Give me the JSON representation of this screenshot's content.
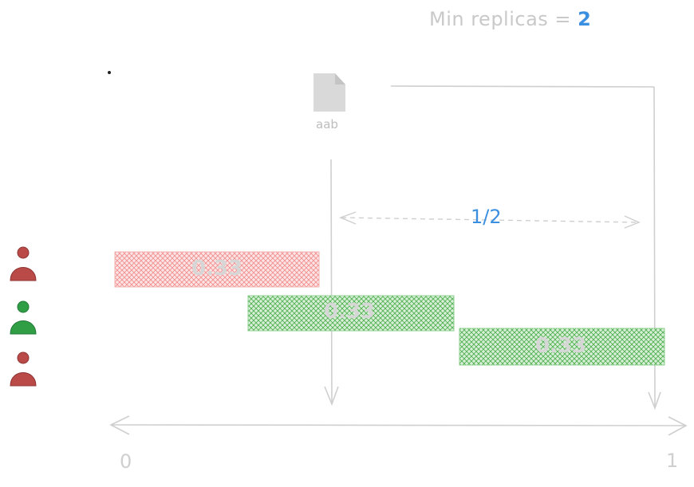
{
  "title": {
    "prefix": "Min replicas = ",
    "value": "2"
  },
  "file": {
    "name": "aab",
    "icon": "file-icon"
  },
  "offset_label": "1/2",
  "axis": {
    "start": "0",
    "end": "1"
  },
  "nodes": [
    {
      "icon": "person-icon",
      "status": "excluded",
      "color": "#b94a48",
      "share": "0.33"
    },
    {
      "icon": "person-icon",
      "status": "selected",
      "color": "#2f9e44",
      "share": "0.33"
    },
    {
      "icon": "person-icon",
      "status": "selected",
      "color": "#b94a48",
      "share": "0.33"
    }
  ],
  "segments": [
    {
      "label": "0.33",
      "fill": "#f5a3a3"
    },
    {
      "label": "0.33",
      "fill": "#5cb85c"
    },
    {
      "label": "0.33",
      "fill": "#5cb85c"
    }
  ],
  "colors": {
    "accent": "#3b8fe0",
    "line": "#cfcfcf",
    "red": "#b94a48",
    "green": "#2f9e44"
  }
}
